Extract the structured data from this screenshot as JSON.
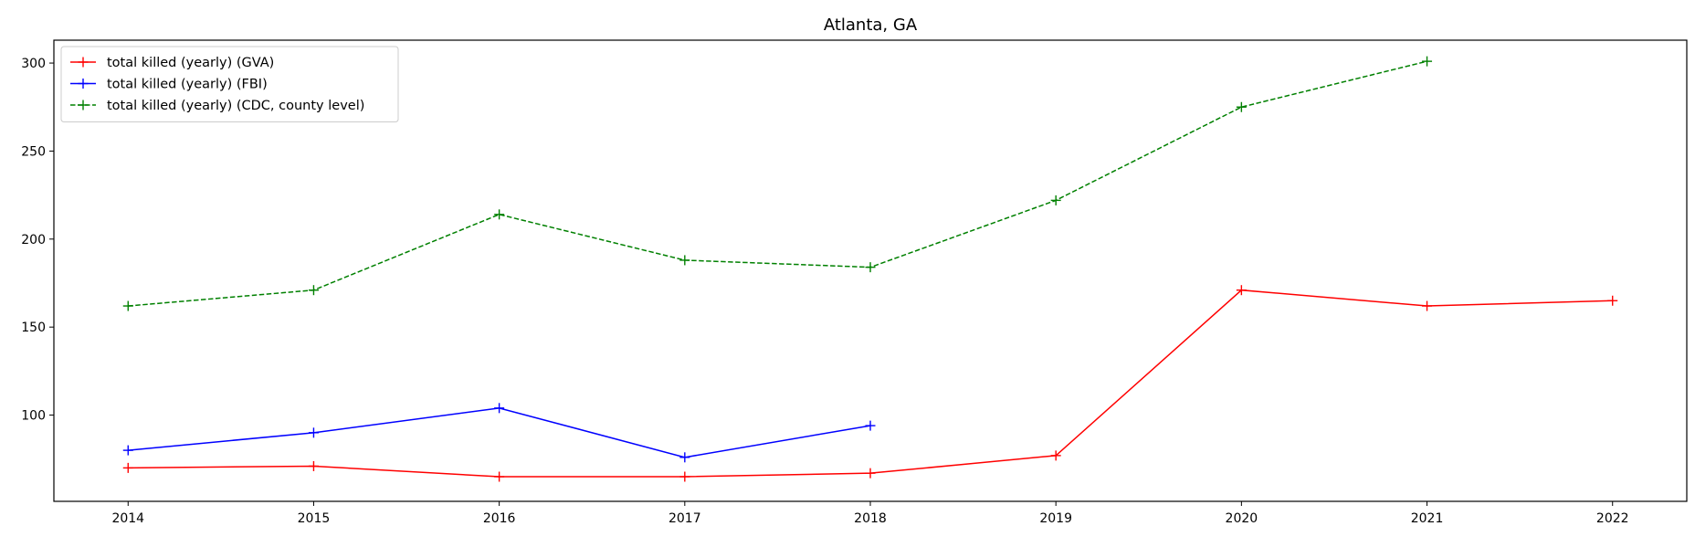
{
  "chart_data": {
    "type": "line",
    "title": "Atlanta, GA",
    "xlabel": "",
    "ylabel": "",
    "x": [
      2014,
      2015,
      2016,
      2017,
      2018,
      2019,
      2020,
      2021,
      2022
    ],
    "xlim": [
      2013.6,
      2022.4
    ],
    "ylim": [
      51,
      313
    ],
    "yticks": [
      100,
      150,
      200,
      250,
      300
    ],
    "grid": false,
    "legend_position": "top-left",
    "series": [
      {
        "name": "total killed (yearly) (GVA)",
        "color": "#ff0000",
        "line_style": "solid",
        "marker": "plus",
        "x": [
          2014,
          2015,
          2016,
          2017,
          2018,
          2019,
          2020,
          2021,
          2022
        ],
        "values": [
          70,
          71,
          65,
          65,
          67,
          77,
          171,
          162,
          165
        ]
      },
      {
        "name": "total killed (yearly) (FBI)",
        "color": "#0000ff",
        "line_style": "solid",
        "marker": "plus",
        "x": [
          2014,
          2015,
          2016,
          2017,
          2018
        ],
        "values": [
          80,
          90,
          104,
          76,
          94
        ]
      },
      {
        "name": "total killed (yearly) (CDC, county level)",
        "color": "#008000",
        "line_style": "dashed",
        "marker": "plus",
        "x": [
          2014,
          2015,
          2016,
          2017,
          2018,
          2019,
          2020,
          2021
        ],
        "values": [
          162,
          171,
          214,
          188,
          184,
          222,
          275,
          301
        ]
      }
    ]
  }
}
